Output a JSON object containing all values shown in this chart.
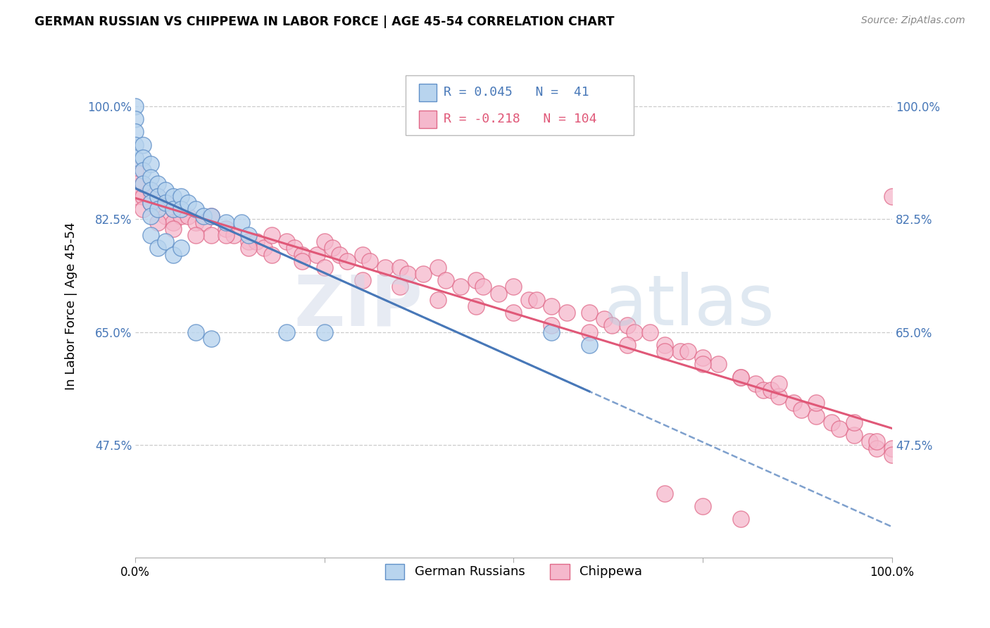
{
  "title": "GERMAN RUSSIAN VS CHIPPEWA IN LABOR FORCE | AGE 45-54 CORRELATION CHART",
  "source": "Source: ZipAtlas.com",
  "ylabel": "In Labor Force | Age 45-54",
  "xlim": [
    0.0,
    1.0
  ],
  "ylim": [
    0.3,
    1.08
  ],
  "yticks": [
    0.475,
    0.65,
    0.825,
    1.0
  ],
  "ytick_labels": [
    "47.5%",
    "65.0%",
    "82.5%",
    "100.0%"
  ],
  "xticks": [
    0.0,
    0.25,
    0.5,
    0.75,
    1.0
  ],
  "xtick_labels": [
    "0.0%",
    "",
    "",
    "",
    "100.0%"
  ],
  "blue_color": "#b8d4ee",
  "pink_color": "#f5b8cc",
  "blue_edge_color": "#6090c8",
  "pink_edge_color": "#e06888",
  "blue_line_color": "#4878b8",
  "pink_line_color": "#e05878",
  "blue_r": 0.045,
  "blue_n": 41,
  "pink_r": -0.218,
  "pink_n": 104,
  "blue_scatter_x": [
    0.0,
    0.0,
    0.0,
    0.0,
    0.0,
    0.01,
    0.01,
    0.01,
    0.01,
    0.02,
    0.02,
    0.02,
    0.02,
    0.02,
    0.03,
    0.03,
    0.03,
    0.04,
    0.04,
    0.05,
    0.05,
    0.06,
    0.06,
    0.07,
    0.08,
    0.09,
    0.1,
    0.12,
    0.14,
    0.15,
    0.02,
    0.03,
    0.04,
    0.05,
    0.06,
    0.2,
    0.25,
    0.08,
    0.1,
    0.55,
    0.6
  ],
  "blue_scatter_y": [
    1.0,
    0.98,
    0.96,
    0.94,
    0.92,
    0.94,
    0.92,
    0.9,
    0.88,
    0.91,
    0.89,
    0.87,
    0.85,
    0.83,
    0.88,
    0.86,
    0.84,
    0.87,
    0.85,
    0.86,
    0.84,
    0.86,
    0.84,
    0.85,
    0.84,
    0.83,
    0.83,
    0.82,
    0.82,
    0.8,
    0.8,
    0.78,
    0.79,
    0.77,
    0.78,
    0.65,
    0.65,
    0.65,
    0.64,
    0.65,
    0.63
  ],
  "pink_scatter_x": [
    0.0,
    0.0,
    0.0,
    0.01,
    0.01,
    0.01,
    0.02,
    0.02,
    0.03,
    0.03,
    0.04,
    0.04,
    0.05,
    0.05,
    0.06,
    0.07,
    0.08,
    0.09,
    0.1,
    0.1,
    0.12,
    0.13,
    0.15,
    0.16,
    0.17,
    0.18,
    0.2,
    0.21,
    0.22,
    0.24,
    0.25,
    0.26,
    0.27,
    0.28,
    0.3,
    0.31,
    0.33,
    0.35,
    0.36,
    0.38,
    0.4,
    0.41,
    0.43,
    0.45,
    0.46,
    0.48,
    0.5,
    0.52,
    0.53,
    0.55,
    0.57,
    0.6,
    0.62,
    0.63,
    0.65,
    0.66,
    0.68,
    0.7,
    0.72,
    0.73,
    0.75,
    0.77,
    0.8,
    0.82,
    0.83,
    0.84,
    0.85,
    0.87,
    0.88,
    0.9,
    0.92,
    0.93,
    0.95,
    0.97,
    0.98,
    1.0,
    0.03,
    0.05,
    0.08,
    0.12,
    0.15,
    0.18,
    0.22,
    0.25,
    0.3,
    0.35,
    0.4,
    0.45,
    0.5,
    0.55,
    0.6,
    0.65,
    0.7,
    0.75,
    0.8,
    0.85,
    0.9,
    0.95,
    0.98,
    1.0,
    0.7,
    0.75,
    0.8,
    1.0
  ],
  "pink_scatter_y": [
    0.9,
    0.88,
    0.86,
    0.88,
    0.86,
    0.84,
    0.87,
    0.85,
    0.86,
    0.84,
    0.85,
    0.83,
    0.84,
    0.82,
    0.83,
    0.83,
    0.82,
    0.82,
    0.83,
    0.8,
    0.81,
    0.8,
    0.79,
    0.79,
    0.78,
    0.8,
    0.79,
    0.78,
    0.77,
    0.77,
    0.79,
    0.78,
    0.77,
    0.76,
    0.77,
    0.76,
    0.75,
    0.75,
    0.74,
    0.74,
    0.75,
    0.73,
    0.72,
    0.73,
    0.72,
    0.71,
    0.72,
    0.7,
    0.7,
    0.69,
    0.68,
    0.68,
    0.67,
    0.66,
    0.66,
    0.65,
    0.65,
    0.63,
    0.62,
    0.62,
    0.61,
    0.6,
    0.58,
    0.57,
    0.56,
    0.56,
    0.55,
    0.54,
    0.53,
    0.52,
    0.51,
    0.5,
    0.49,
    0.48,
    0.47,
    0.47,
    0.82,
    0.81,
    0.8,
    0.8,
    0.78,
    0.77,
    0.76,
    0.75,
    0.73,
    0.72,
    0.7,
    0.69,
    0.68,
    0.66,
    0.65,
    0.63,
    0.62,
    0.6,
    0.58,
    0.57,
    0.54,
    0.51,
    0.48,
    0.46,
    0.4,
    0.38,
    0.36,
    0.86
  ]
}
